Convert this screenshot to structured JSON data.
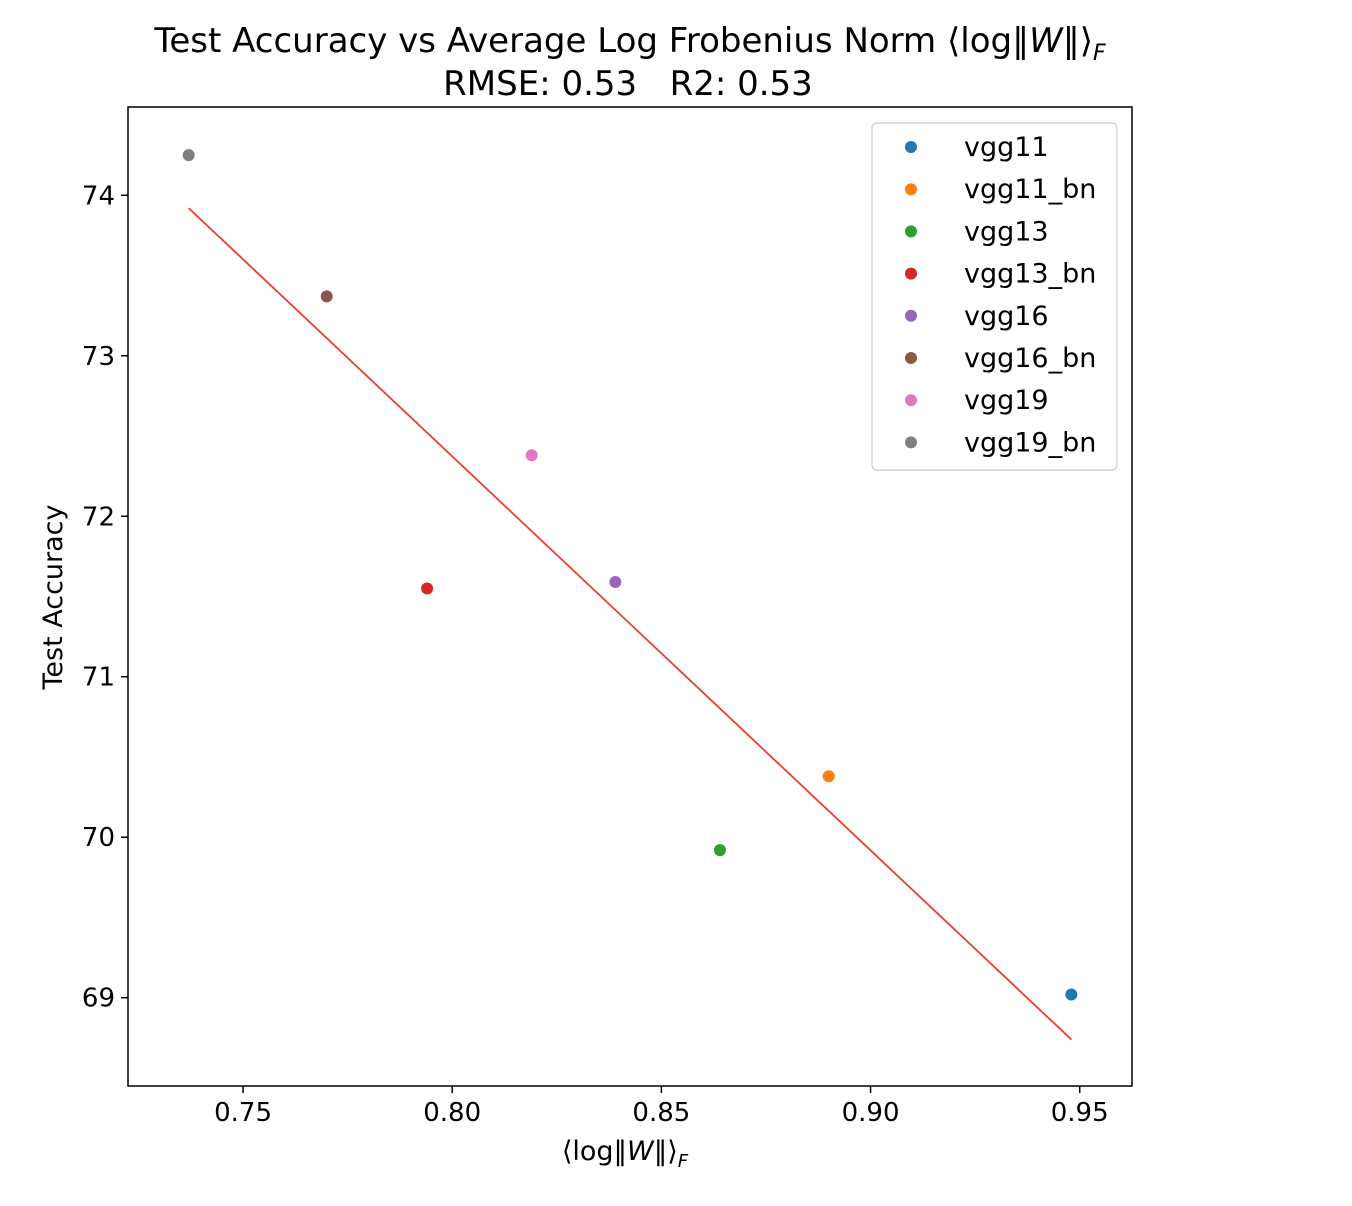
{
  "chart_data": {
    "type": "scatter",
    "title": {
      "prefix": "Test Accuracy vs Average Log Frobenius Norm ⟨log‖",
      "italic": "W",
      "suffix": "‖⟩",
      "subscript": "F"
    },
    "subtitle": "RMSE: 0.53   R2: 0.53",
    "xlabel": {
      "prefix": "⟨log‖",
      "italic": "W",
      "suffix": "‖⟩",
      "subscript": "F"
    },
    "ylabel": "Test Accuracy",
    "xlim": [
      0.7225,
      0.9625
    ],
    "ylim": [
      68.45,
      74.55
    ],
    "xticks": [
      0.75,
      0.8,
      0.85,
      0.9,
      0.95
    ],
    "xtick_labels": [
      "0.75",
      "0.80",
      "0.85",
      "0.90",
      "0.95"
    ],
    "yticks": [
      69,
      70,
      71,
      72,
      73,
      74
    ],
    "ytick_labels": [
      "69",
      "70",
      "71",
      "72",
      "73",
      "74"
    ],
    "grid": false,
    "legend_position": "top-right",
    "series": [
      {
        "name": "vgg11",
        "color": "#1f77b4",
        "x": 0.948,
        "y": 69.02
      },
      {
        "name": "vgg11_bn",
        "color": "#ff7f0e",
        "x": 0.89,
        "y": 70.38
      },
      {
        "name": "vgg13",
        "color": "#2ca02c",
        "x": 0.864,
        "y": 69.92
      },
      {
        "name": "vgg13_bn",
        "color": "#d62728",
        "x": 0.794,
        "y": 71.55
      },
      {
        "name": "vgg16",
        "color": "#9467bd",
        "x": 0.839,
        "y": 71.59
      },
      {
        "name": "vgg16_bn",
        "color": "#8c564b",
        "x": 0.77,
        "y": 73.37
      },
      {
        "name": "vgg19",
        "color": "#e377c2",
        "x": 0.819,
        "y": 72.38
      },
      {
        "name": "vgg19_bn",
        "color": "#7f7f7f",
        "x": 0.737,
        "y": 74.25
      }
    ],
    "fit_line": {
      "color": "#e8402f",
      "x": [
        0.737,
        0.948
      ],
      "y": [
        73.92,
        68.74
      ]
    }
  }
}
